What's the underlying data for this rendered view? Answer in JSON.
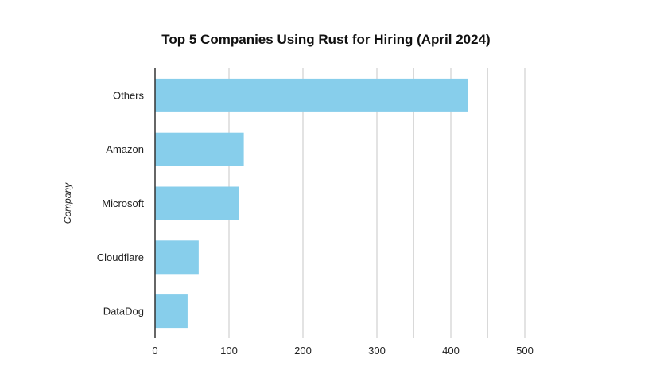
{
  "chart_data": {
    "type": "bar",
    "orientation": "horizontal",
    "title": "Top 5 Companies Using Rust for Hiring (April 2024)",
    "xlabel": "",
    "ylabel": "Company",
    "categories": [
      "Others",
      "Amazon",
      "Microsoft",
      "Cloudflare",
      "DataDog"
    ],
    "values": [
      423,
      120,
      113,
      59,
      44
    ],
    "xlim": [
      0,
      500
    ],
    "xticks": [
      0,
      100,
      200,
      300,
      400,
      500
    ],
    "grid": true,
    "legend": "none",
    "colors": {
      "bar": "#87ceeb",
      "grid": "#d0d0d0",
      "axis": "#333333"
    }
  }
}
